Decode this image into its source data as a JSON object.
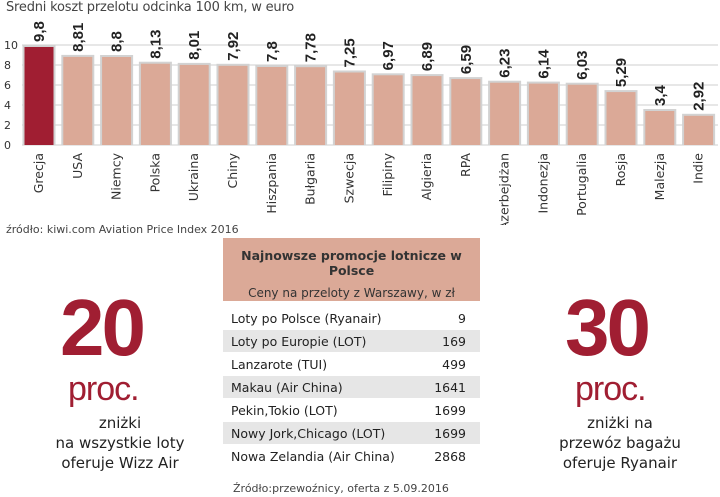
{
  "chart_data": {
    "type": "bar",
    "title": "Średni koszt przelotu odcinka 100 km, w euro",
    "categories": [
      "Grecja",
      "USA",
      "Niemcy",
      "Polska",
      "Ukraina",
      "Chiny",
      "Hiszpania",
      "Bułgaria",
      "Szwecja",
      "Filipiny",
      "Algieria",
      "RPA",
      "Azerbejdżan",
      "Indonezja",
      "Portugalia",
      "Rosja",
      "Malezja",
      "Indie"
    ],
    "values": [
      9.8,
      8.81,
      8.8,
      8.13,
      8.01,
      7.92,
      7.8,
      7.78,
      7.25,
      6.97,
      6.89,
      6.59,
      6.23,
      6.14,
      6.03,
      5.29,
      3.4,
      2.92
    ],
    "value_labels": [
      "9,8",
      "8,81",
      "8,8",
      "8,13",
      "8,01",
      "7,92",
      "7,8",
      "7,78",
      "7,25",
      "6,97",
      "6,89",
      "6,59",
      "6,23",
      "6,14",
      "6,03",
      "5,29",
      "3,4",
      "2,92"
    ],
    "ylim": [
      0,
      10
    ],
    "yticks": [
      0,
      2,
      4,
      6,
      8,
      10
    ],
    "highlight_color": "#a01e32",
    "bar_color": "#dba997",
    "grid": true
  },
  "source_chart": "źródło: kiwi.com Aviation Price Index 2016",
  "left_stat": {
    "number": "20",
    "unit": "proc.",
    "lines": [
      "zniżki",
      "na wszystkie loty",
      "oferuje Wizz Air"
    ]
  },
  "right_stat": {
    "number": "30",
    "unit": "proc.",
    "lines": [
      "zniżki na",
      "przewóz bagażu",
      "oferuje Ryanair"
    ]
  },
  "promo": {
    "title": "Najnowsze promocje lotnicze w Polsce",
    "subtitle": "Ceny na przeloty z Warszawy, w zł",
    "rows": [
      {
        "label": "Loty po Polsce (Ryanair)",
        "value": "9"
      },
      {
        "label": "Loty po Europie (LOT)",
        "value": "169"
      },
      {
        "label": "Lanzarote (TUI)",
        "value": "499"
      },
      {
        "label": "Makau (Air China)",
        "value": "1641"
      },
      {
        "label": "Pekin,Tokio (LOT)",
        "value": "1699"
      },
      {
        "label": "Nowy Jork,Chicago (LOT)",
        "value": "1699"
      },
      {
        "label": "Nowa Zelandia (Air China)",
        "value": "2868"
      }
    ]
  },
  "source_promo": "Źródło:przewoźnicy, oferta z 5.09.2016"
}
